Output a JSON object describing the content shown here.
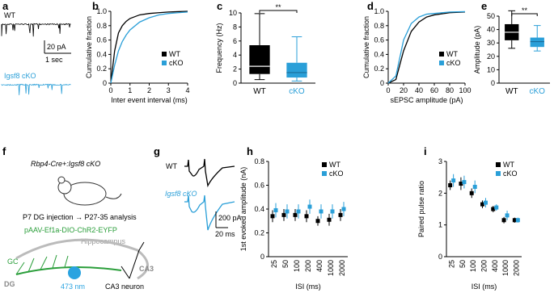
{
  "panel_a": {
    "panel": "a",
    "wt": "WT",
    "cko": "Igsf8 cKO",
    "scale_y": "20 pA",
    "scale_x": "1 sec"
  },
  "panel_f": {
    "panel": "f",
    "mouse": "Rbp4-Cre+:Igsf8 cKO",
    "injection": "P7 DG injection → P27-35 analysis",
    "virus": "pAAV-Ef1a-DIO-ChR2-EYFP",
    "hippocampus": "Hippocampus",
    "gc": "GC",
    "dg": "DG",
    "light": "473 nm",
    "ca3_neuron": "CA3 neuron",
    "ca3": "CA3"
  },
  "panel_g": {
    "panel": "g",
    "wt": "WT",
    "cko": "Igsf8 cKO",
    "scale_y": "200 pA",
    "scale_x": "20 ms"
  },
  "chart_data": [
    {
      "type": "line",
      "panel": "b",
      "xlabel": "Inter event interval (ms)",
      "ylabel": "Cumulative fraction",
      "x": [
        0,
        0.2,
        0.4,
        0.6,
        0.8,
        1,
        1.5,
        2,
        2.5,
        3,
        3.5,
        4
      ],
      "series": [
        {
          "name": "WT",
          "color": "#000000",
          "values": [
            0,
            0.45,
            0.7,
            0.8,
            0.86,
            0.9,
            0.95,
            0.97,
            0.98,
            0.99,
            0.995,
            1
          ]
        },
        {
          "name": "cKO",
          "color": "#2a9fd8",
          "values": [
            0,
            0.25,
            0.45,
            0.58,
            0.67,
            0.74,
            0.85,
            0.91,
            0.95,
            0.97,
            0.98,
            0.99
          ]
        }
      ],
      "xlim": [
        0,
        4
      ],
      "xticks": [
        0,
        1,
        2,
        3,
        4
      ],
      "ylim": [
        0,
        1
      ],
      "yticks": [
        0,
        0.2,
        0.4,
        0.6,
        0.8,
        {
          "value": 1,
          "label": "1.0"
        }
      ],
      "legend": "lower right"
    },
    {
      "type": "box",
      "panel": "c",
      "ylabel": "Frequency (Hz)",
      "categories": [
        "WT",
        "cKO"
      ],
      "boxes": [
        {
          "min": 0.5,
          "q1": 1.3,
          "median": 2.4,
          "q3": 5.4,
          "max": 9.9,
          "color": "#000000",
          "median_color": "#ffffff"
        },
        {
          "min": 0.3,
          "q1": 0.8,
          "median": 1.5,
          "q3": 2.9,
          "max": 6.6,
          "color": "#2a9fd8",
          "median_color": "#1a6c99"
        }
      ],
      "annotation": "**",
      "ylim": [
        0,
        10
      ],
      "yticks": [
        0,
        2,
        4,
        6,
        8,
        10
      ]
    },
    {
      "type": "line",
      "panel": "d",
      "xlabel": "sEPSC amplitude (pA)",
      "ylabel": "Cumulative fraction",
      "x": [
        0,
        10,
        20,
        30,
        40,
        50,
        60,
        80,
        100
      ],
      "series": [
        {
          "name": "WT",
          "color": "#000000",
          "values": [
            0,
            0.05,
            0.45,
            0.72,
            0.85,
            0.92,
            0.95,
            0.98,
            0.99
          ]
        },
        {
          "name": "cKO",
          "color": "#2a9fd8",
          "values": [
            0,
            0.1,
            0.6,
            0.83,
            0.92,
            0.96,
            0.97,
            0.99,
            0.995
          ]
        }
      ],
      "xlim": [
        0,
        100
      ],
      "xticks": [
        0,
        20,
        40,
        60,
        80,
        100
      ],
      "ylim": [
        0,
        1
      ],
      "yticks": [
        0,
        0.2,
        0.4,
        0.6,
        0.8,
        {
          "value": 1,
          "label": "1.0"
        }
      ],
      "legend": "lower right"
    },
    {
      "type": "box",
      "panel": "e",
      "ylabel": "Amplitude (pA)",
      "categories": [
        "WT",
        "cKO"
      ],
      "boxes": [
        {
          "min": 26,
          "q1": 32,
          "median": 38,
          "q3": 44,
          "max": 54,
          "color": "#000000",
          "median_color": "#ffffff"
        },
        {
          "min": 24,
          "q1": 27,
          "median": 31,
          "q3": 34,
          "max": 43,
          "color": "#2a9fd8",
          "median_color": "#1a6c99"
        }
      ],
      "annotation": "**",
      "ylim": [
        0,
        50
      ],
      "yticks": [
        0,
        10,
        20,
        30,
        40,
        50
      ]
    },
    {
      "type": "point",
      "panel": "h",
      "xlabel": "ISI (ms)",
      "ylabel": "1st evoked amplitude (nA)",
      "categories": [
        "25",
        "50",
        "100",
        "200",
        "400",
        "1000",
        "2000"
      ],
      "series": [
        {
          "name": "WT",
          "color": "#000000",
          "values": [
            0.34,
            0.35,
            0.35,
            0.34,
            0.3,
            0.31,
            0.35
          ],
          "errors": [
            0.05,
            0.05,
            0.05,
            0.05,
            0.04,
            0.05,
            0.05
          ]
        },
        {
          "name": "cKO",
          "color": "#2a9fd8",
          "values": [
            0.39,
            0.38,
            0.38,
            0.42,
            0.38,
            0.38,
            0.4
          ],
          "errors": [
            0.06,
            0.06,
            0.06,
            0.06,
            0.06,
            0.06,
            0.06
          ]
        }
      ],
      "ylim": [
        0,
        0.8
      ],
      "yticks": [
        0,
        0.2,
        0.4,
        0.6,
        0.8
      ],
      "legend": "upper right"
    },
    {
      "type": "point",
      "panel": "i",
      "xlabel": "ISI (ms)",
      "ylabel": "Paired pulse ratio",
      "categories": [
        "25",
        "50",
        "100",
        "200",
        "400",
        "1000",
        "2000"
      ],
      "series": [
        {
          "name": "WT",
          "color": "#000000",
          "values": [
            2.25,
            2.3,
            2.0,
            1.65,
            1.5,
            1.15,
            1.15
          ],
          "errors": [
            0.15,
            0.2,
            0.15,
            0.12,
            0.1,
            0.1,
            0.08
          ]
        },
        {
          "name": "cKO",
          "color": "#2a9fd8",
          "values": [
            2.4,
            2.35,
            2.2,
            1.7,
            1.55,
            1.3,
            1.15
          ],
          "errors": [
            0.2,
            0.2,
            0.2,
            0.15,
            0.1,
            0.15,
            0.08
          ]
        }
      ],
      "ylim": [
        0,
        3
      ],
      "yticks": [
        0,
        1,
        2,
        3
      ],
      "legend": "upper right"
    }
  ]
}
